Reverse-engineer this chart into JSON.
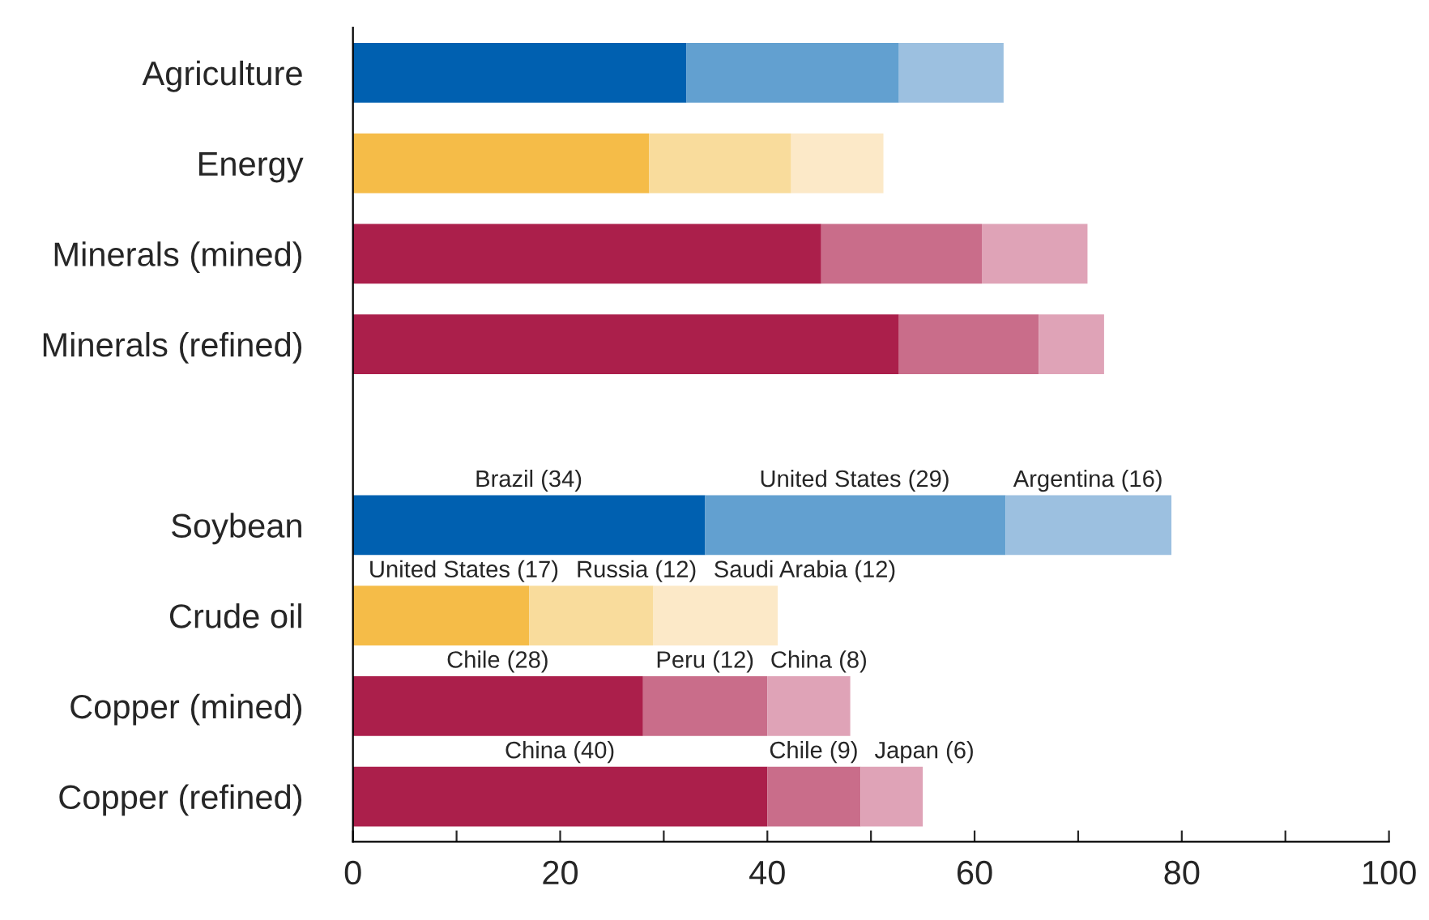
{
  "chart_data": {
    "type": "bar",
    "orientation": "horizontal",
    "stacked": true,
    "categories": [
      "Agriculture",
      "Energy",
      "Minerals (mined)",
      "Minerals (refined)",
      null,
      "Soybean",
      "Crude oil",
      "Copper (mined)",
      "Copper (refined)"
    ],
    "series": [
      {
        "colors": [
          "#0060b0",
          "#f5bc48",
          "#ab1f4b",
          "#ab1f4b",
          null,
          "#0060b0",
          "#f5bc48",
          "#ab1f4b",
          "#ab1f4b"
        ],
        "values": [
          32.2,
          28.6,
          45.2,
          52.7,
          null,
          34,
          17,
          28,
          40
        ],
        "value_labels": [
          null,
          null,
          null,
          null,
          null,
          "Brazil (34)",
          "United States (17)",
          "Chile (28)",
          "China (40)"
        ]
      },
      {
        "colors": [
          "#62a0d0",
          "#f9dc9c",
          "#c96d8a",
          "#c96d8a",
          null,
          "#62a0d0",
          "#f9dc9c",
          "#c96d8a",
          "#c96d8a"
        ],
        "values": [
          20.5,
          13.7,
          15.5,
          13.5,
          null,
          29,
          12,
          12,
          9
        ],
        "value_labels": [
          null,
          null,
          null,
          null,
          null,
          "United States (29)",
          "Russia (12)",
          "Peru (12)",
          "Chile (9)"
        ]
      },
      {
        "colors": [
          "#9cc0e0",
          "#fce9c8",
          "#dfa3b7",
          "#dfa3b7",
          null,
          "#9cc0e0",
          "#fce9c8",
          "#dfa3b7",
          "#dfa3b7"
        ],
        "values": [
          10.1,
          8.9,
          10.2,
          6.3,
          null,
          16,
          12,
          8,
          6
        ],
        "value_labels": [
          null,
          null,
          null,
          null,
          null,
          "Argentina (16)",
          "Saudi Arabia (12)",
          "China (8)",
          "Japan (6)"
        ]
      }
    ],
    "xlim": [
      0,
      100
    ],
    "xticks": [
      0,
      {
        "value": 10,
        "label": null
      },
      20,
      {
        "value": 30,
        "label": null
      },
      40,
      {
        "value": 50,
        "label": null
      },
      60,
      {
        "value": 70,
        "label": null
      },
      80,
      {
        "value": 90,
        "label": null
      },
      100
    ],
    "grid": false
  }
}
